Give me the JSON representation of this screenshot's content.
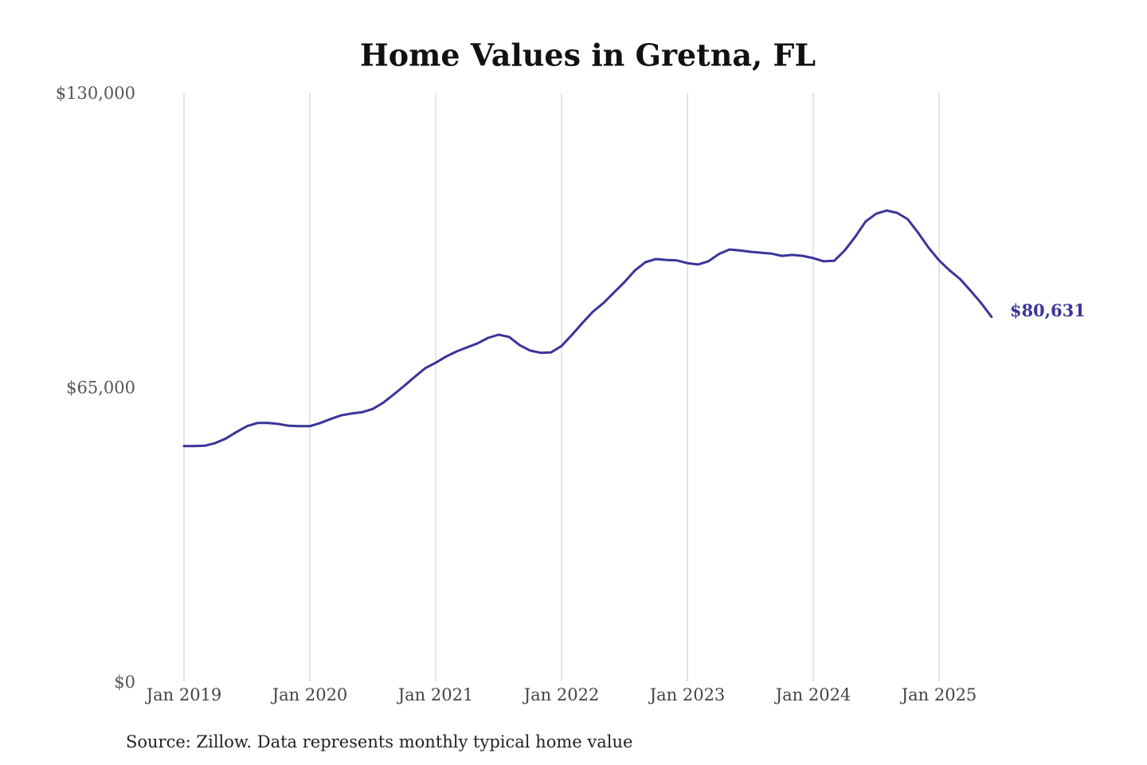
{
  "chart_data": {
    "type": "line",
    "title": "Home Values in Gretna, FL",
    "x": [
      "2019-01",
      "2019-02",
      "2019-03",
      "2019-04",
      "2019-05",
      "2019-06",
      "2019-07",
      "2019-08",
      "2019-09",
      "2019-10",
      "2019-11",
      "2019-12",
      "2020-01",
      "2020-02",
      "2020-03",
      "2020-04",
      "2020-05",
      "2020-06",
      "2020-07",
      "2020-08",
      "2020-09",
      "2020-10",
      "2020-11",
      "2020-12",
      "2021-01",
      "2021-02",
      "2021-03",
      "2021-04",
      "2021-05",
      "2021-06",
      "2021-07",
      "2021-08",
      "2021-09",
      "2021-10",
      "2021-11",
      "2021-12",
      "2022-01",
      "2022-02",
      "2022-03",
      "2022-04",
      "2022-05",
      "2022-06",
      "2022-07",
      "2022-08",
      "2022-09",
      "2022-10",
      "2022-11",
      "2022-12",
      "2023-01",
      "2023-02",
      "2023-03",
      "2023-04",
      "2023-05",
      "2023-06",
      "2023-07",
      "2023-08",
      "2023-09",
      "2023-10",
      "2023-11",
      "2023-12",
      "2024-01",
      "2024-02",
      "2024-03",
      "2024-04",
      "2024-05",
      "2024-06",
      "2024-07",
      "2024-08",
      "2024-09",
      "2024-10",
      "2024-11",
      "2024-12",
      "2025-01",
      "2025-02",
      "2025-03",
      "2025-04",
      "2025-05",
      "2025-06"
    ],
    "series": [
      {
        "color": "#3a3599",
        "values": [
          52100,
          52100,
          52200,
          52800,
          53800,
          55200,
          56500,
          57200,
          57200,
          57000,
          56600,
          56500,
          56500,
          57200,
          58100,
          58900,
          59300,
          59600,
          60300,
          61700,
          63500,
          65400,
          67400,
          69300,
          70500,
          71900,
          73000,
          73900,
          74800,
          76000,
          76700,
          76200,
          74400,
          73200,
          72700,
          72800,
          74200,
          76700,
          79300,
          81800,
          83700,
          86000,
          88300,
          90900,
          92700,
          93400,
          93200,
          93100,
          92500,
          92200,
          92900,
          94500,
          95500,
          95300,
          95000,
          94800,
          94600,
          94100,
          94300,
          94100,
          93600,
          92900,
          93000,
          95300,
          98300,
          101700,
          103400,
          104100,
          103600,
          102200,
          99200,
          95900,
          93100,
          90900,
          89000,
          86400,
          83700,
          80631
        ]
      }
    ],
    "ylim": [
      0,
      130000
    ],
    "yticks": [
      {
        "value": 130000,
        "label": "$130,000"
      },
      {
        "value": 65000,
        "label": "$65,000"
      },
      {
        "value": 0,
        "label": "$0"
      }
    ],
    "xticks": [
      {
        "value": "2019-01",
        "label": "Jan 2019"
      },
      {
        "value": "2020-01",
        "label": "Jan 2020"
      },
      {
        "value": "2021-01",
        "label": "Jan 2021"
      },
      {
        "value": "2022-01",
        "label": "Jan 2022"
      },
      {
        "value": "2023-01",
        "label": "Jan 2023"
      },
      {
        "value": "2024-01",
        "label": "Jan 2024"
      },
      {
        "value": "2025-01",
        "label": "Jan 2025"
      }
    ],
    "end_label": "$80,631",
    "grid": "vertical",
    "caption": "Source: Zillow. Data represents monthly typical home value"
  }
}
